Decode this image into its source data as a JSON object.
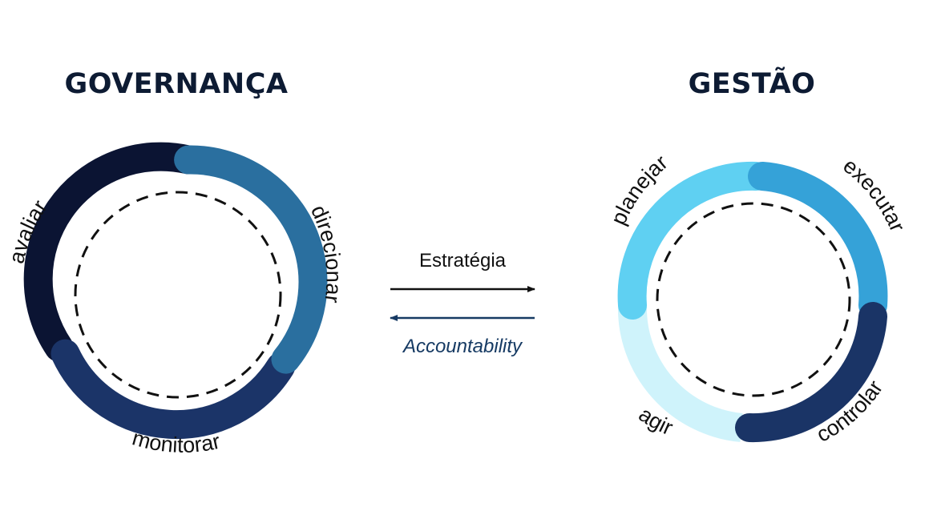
{
  "governance": {
    "title": "GOVERNANÇA",
    "segments": [
      {
        "label": "avaliar",
        "color": "#0b1433"
      },
      {
        "label": "direcionar",
        "color": "#2a6f9f"
      },
      {
        "label": "monitorar",
        "color": "#1b3468"
      }
    ]
  },
  "management": {
    "title": "GESTÃO",
    "segments": [
      {
        "label": "planejar",
        "color": "#5fd0f2"
      },
      {
        "label": "executar",
        "color": "#35a2d8"
      },
      {
        "label": "controlar",
        "color": "#1a3466"
      },
      {
        "label": "agir",
        "color": "#cff3fb"
      }
    ]
  },
  "flows": {
    "forward": {
      "label": "Estratégia",
      "color": "#111111"
    },
    "backward": {
      "label": "Accountability",
      "color": "#163a63"
    }
  }
}
